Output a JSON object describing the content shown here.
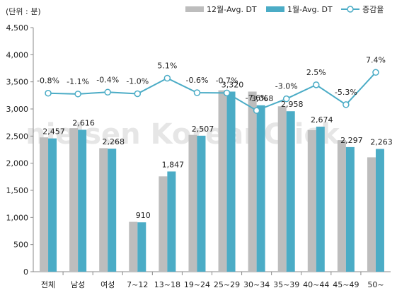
{
  "chart_data": {
    "type": "bar",
    "unit_label": "(단위 : 분)",
    "watermark": "nielsen KoreanClick",
    "categories": [
      "전체",
      "남성",
      "여성",
      "7~12",
      "13~18",
      "19~24",
      "25~29",
      "30~34",
      "35~39",
      "40~44",
      "45~49",
      "50~"
    ],
    "series": [
      {
        "name": "12월-Avg. DT",
        "color": "#bdbdbd",
        "values": [
          2476,
          2646,
          2277,
          919,
          1757,
          2522,
          3343,
          3320,
          3049,
          2609,
          2425,
          2108
        ]
      },
      {
        "name": "1월-Avg. DT",
        "color": "#4bacc6",
        "values": [
          2457,
          2616,
          2268,
          910,
          1847,
          2507,
          3320,
          3068,
          2958,
          2674,
          2297,
          2263
        ]
      }
    ],
    "data_labels": [
      "2,457",
      "2,616",
      "2,268",
      "910",
      "1,847",
      "2,507",
      "3,320",
      "3,068",
      "2,958",
      "2,674",
      "2,297",
      "2,263"
    ],
    "line_series": {
      "name": "증감율",
      "color": "#4bacc6",
      "values": [
        -0.8,
        -1.1,
        -0.4,
        -1.0,
        5.1,
        -0.6,
        -0.7,
        -7.6,
        -3.0,
        2.5,
        -5.3,
        7.4
      ],
      "labels": [
        "-0.8%",
        "-1.1%",
        "-0.4%",
        "-1.0%",
        "5.1%",
        "-0.6%",
        "-0.7%",
        "-7.6%",
        "-3.0%",
        "2.5%",
        "-5.3%",
        "7.4%"
      ]
    },
    "ylim": [
      0,
      4500
    ],
    "yticks": [
      0,
      500,
      1000,
      1500,
      2000,
      2500,
      3000,
      3500,
      4000,
      4500
    ],
    "ytick_labels": [
      "0",
      "500",
      "1,000",
      "1,500",
      "2,000",
      "2,500",
      "3,000",
      "3,500",
      "4,000",
      "4,500"
    ],
    "legend_position": "top-right",
    "grid": false
  }
}
